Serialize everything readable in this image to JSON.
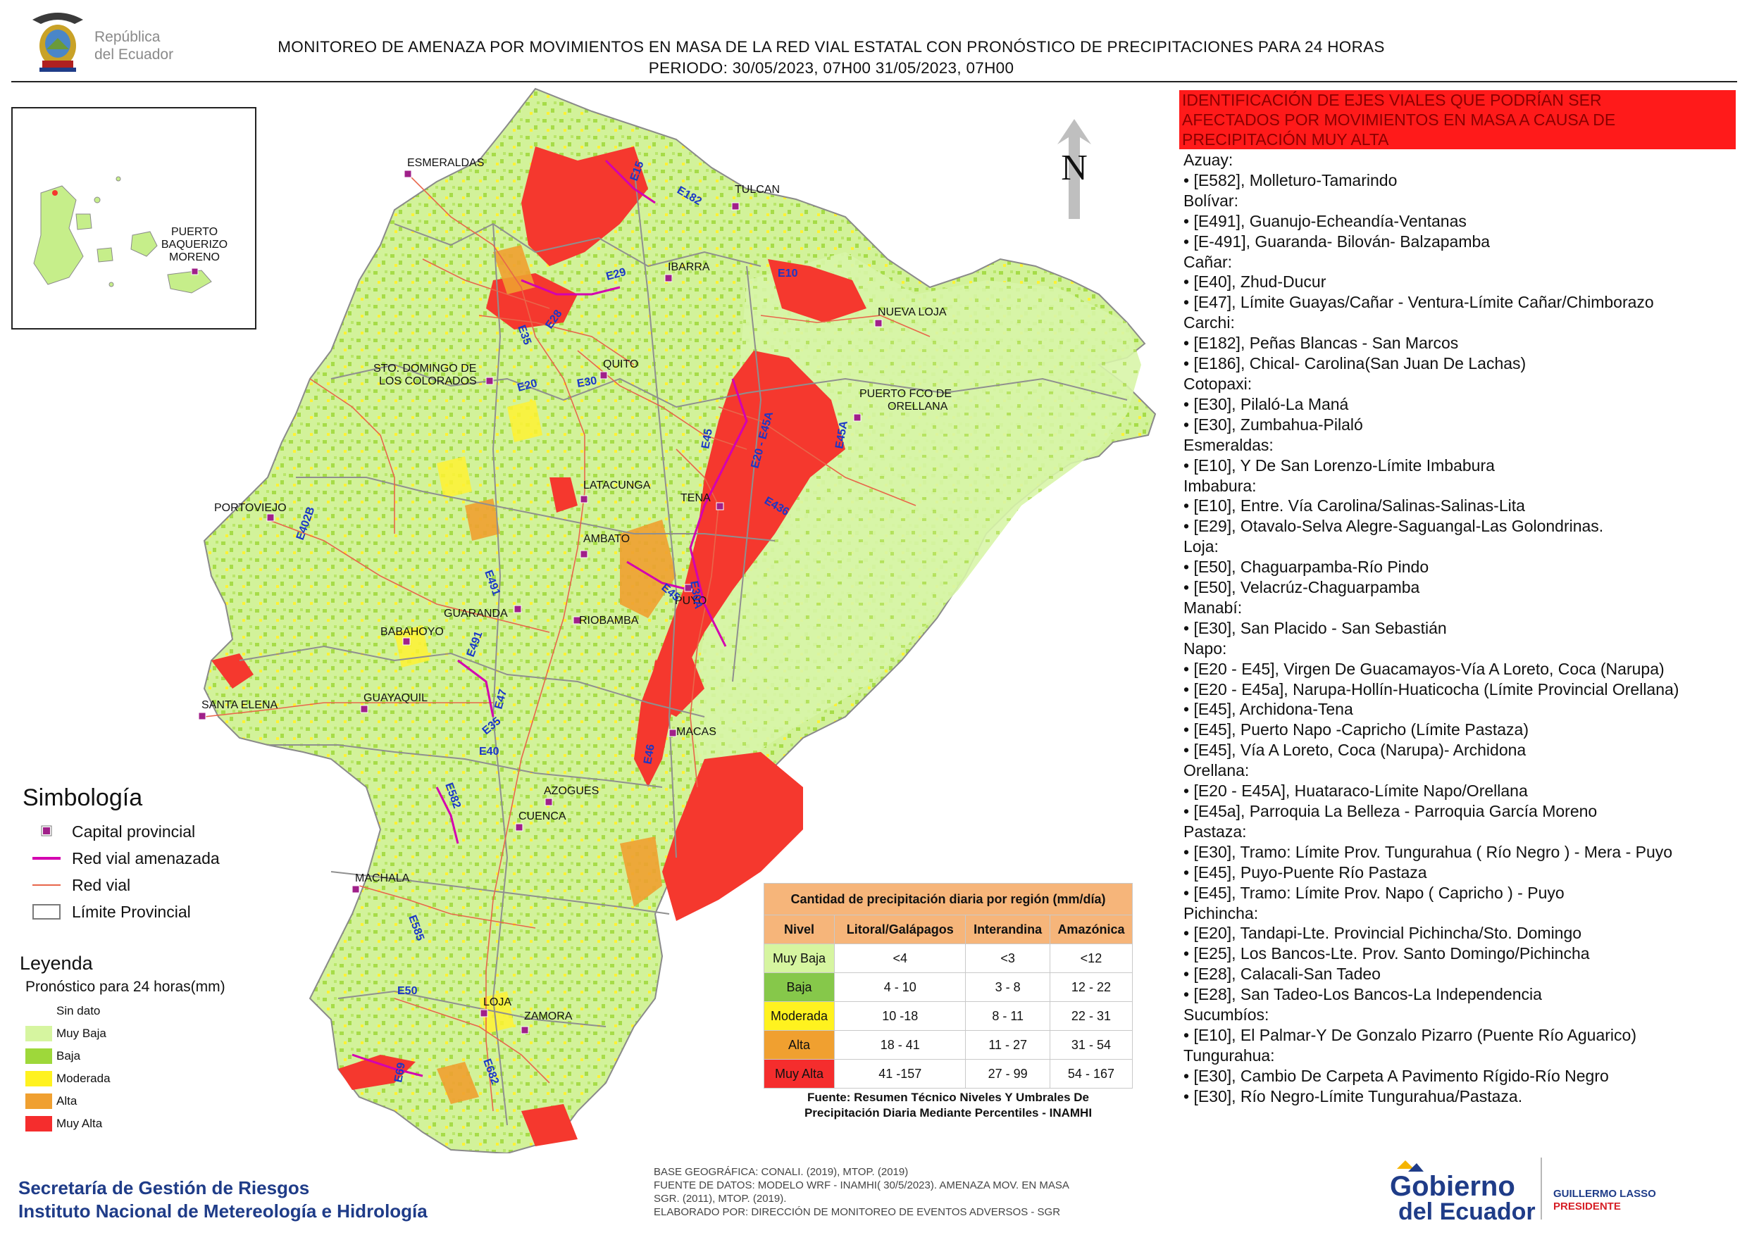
{
  "header": {
    "logo_text_line1": "República",
    "logo_text_line2": "del Ecuador",
    "title_line1": "MONITOREO DE AMENAZA POR MOVIMIENTOS EN MASA DE LA RED VIAL  ESTATAL  CON PRONÓSTICO  DE  PRECIPITACIONES PARA 24 HORAS",
    "title_line2": "PERIODO: 30/05/2023, 07H00 31/05/2023, 07H00"
  },
  "map": {
    "north_label": "N",
    "cities": [
      "ESMERALDAS",
      "TULCAN",
      "IBARRA",
      "NUEVA LOJA",
      "QUITO",
      "STO. DOMINGO DE",
      "LOS COLORADOS",
      "PUERTO FCO DE",
      "ORELLANA",
      "LATACUNGA",
      "TENA",
      "PORTOVIEJO",
      "AMBATO",
      "PUYO",
      "GUARANDA",
      "RIOBAMBA",
      "BABAHOYO",
      "SANTA ELENA",
      "GUAYAQUIL",
      "MACAS",
      "AZOGUES",
      "CUENCA",
      "MACHALA",
      "LOJA",
      "ZAMORA"
    ],
    "roads": [
      "E15",
      "E182",
      "E10",
      "E29",
      "E35",
      "E28",
      "E20",
      "E30",
      "E45",
      "E20 - E45A",
      "E45A",
      "E436",
      "E402B",
      "E30A",
      "E45",
      "E491",
      "E491",
      "E47",
      "E35",
      "E40",
      "E46",
      "E582",
      "E585",
      "E50",
      "E69",
      "E682"
    ],
    "inset_labels": [
      "PUERTO",
      "BAQUERIZO",
      "MORENO"
    ]
  },
  "highlight": {
    "line1": "IDENTIFICACIÓN DE EJES VIALES QUE PODRÍAN SER",
    "line2": "AFECTADOS POR MOVIMIENTOS EN MASA A CAUSA DE",
    "line3": "PRECIPITACIÓN MUY ALTA"
  },
  "road_list": [
    "Azuay:",
    "• [E582], Molleturo-Tamarindo",
    "Bolívar:",
    "• [E491], Guanujo-Echeandía-Ventanas",
    "• [E-491], Guaranda- Bilován- Balzapamba",
    "Cañar:",
    "• [E40], Zhud-Ducur",
    "• [E47], Límite Guayas/Cañar - Ventura-Límite Cañar/Chimborazo",
    "Carchi:",
    "• [E182], Peñas Blancas - San Marcos",
    "• [E186], Chical- Carolina(San Juan De Lachas)",
    "Cotopaxi:",
    "• [E30], Pilaló-La Maná",
    "• [E30], Zumbahua-Pilaló",
    "Esmeraldas:",
    "• [E10], Y De San Lorenzo-Límite Imbabura",
    "Imbabura:",
    "• [E10], Entre. Vía Carolina/Salinas-Salinas-Lita",
    "• [E29], Otavalo-Selva Alegre-Saguangal-Las Golondrinas.",
    "Loja:",
    "• [E50], Chaguarpamba-Río Pindo",
    "• [E50], Velacrúz-Chaguarpamba",
    "Manabí:",
    "• [E30], San Placido - San Sebastián",
    "Napo:",
    "• [E20 - E45], Virgen De Guacamayos-Vía A Loreto, Coca (Narupa)",
    "• [E20 - E45a], Narupa-Hollín-Huaticocha (Límite Provincial Orellana)",
    "• [E45], Archidona-Tena",
    "• [E45], Puerto Napo -Capricho (Límite Pastaza)",
    "• [E45], Vía A Loreto, Coca (Narupa)- Archidona",
    "Orellana:",
    "• [E20 - E45A], Huataraco-Límite Napo/Orellana",
    "• [E45a], Parroquia La Belleza - Parroquia García Moreno",
    "Pastaza:",
    "• [E30], Tramo: Límite Prov. Tungurahua ( Río Negro ) - Mera - Puyo",
    "• [E45], Puyo-Puente Río Pastaza",
    "• [E45], Tramo: Límite Prov. Napo ( Capricho ) - Puyo",
    "Pichincha:",
    "• [E20], Tandapi-Lte. Provincial Pichincha/Sto. Domingo",
    "• [E25], Los Bancos-Lte. Prov. Santo Domingo/Pichincha",
    "• [E28], Calacali-San Tadeo",
    "• [E28], San Tadeo-Los Bancos-La Independencia",
    "Sucumbíos:",
    "• [E10], El Palmar-Y De Gonzalo Pizarro (Puente Río Aguarico)",
    "Tungurahua:",
    "• [E30], Cambio De Carpeta A Pavimento Rígido-Río Negro",
    "• [E30], Río Negro-Límite Tungurahua/Pastaza."
  ],
  "simbologia": {
    "title": "Simbología",
    "items": [
      {
        "label": "Capital provincial",
        "icon": "square-marker-icon",
        "color": "#a0208a"
      },
      {
        "label": "Red vial amenazada",
        "icon": "line-icon",
        "color": "#d400b0"
      },
      {
        "label": "Red vial",
        "icon": "line-icon",
        "color": "#e8664a"
      },
      {
        "label": "Límite Provincial",
        "icon": "box-icon",
        "color": "#7a7a7a"
      }
    ]
  },
  "leyenda": {
    "title": "Leyenda",
    "subtitle": "Pronóstico para 24 horas(mm)",
    "items": [
      {
        "label": "Sin dato",
        "color": "#ffffff"
      },
      {
        "label": "Muy Baja",
        "color": "#d6f5a0"
      },
      {
        "label": "Baja",
        "color": "#9ed83a"
      },
      {
        "label": "Moderada",
        "color": "#fff21f"
      },
      {
        "label": "Alta",
        "color": "#f0a030"
      },
      {
        "label": "Muy Alta",
        "color": "#f52d2d"
      }
    ]
  },
  "precip_table": {
    "caption": "Cantidad de precipitación diaria por región (mm/día)",
    "headers": [
      "Nivel",
      "Litoral/Galápagos",
      "Interandina",
      "Amazónica"
    ],
    "rows": [
      {
        "nivel": "Muy Baja",
        "color": "#d6f5a0",
        "values": [
          "<4",
          "<3",
          "<12"
        ]
      },
      {
        "nivel": "Baja",
        "color": "#86c84a",
        "values": [
          "4 - 10",
          "3 - 8",
          "12 - 22"
        ]
      },
      {
        "nivel": "Moderada",
        "color": "#fff21f",
        "values": [
          "10 -18",
          "8 - 11",
          "22 - 31"
        ]
      },
      {
        "nivel": "Alta",
        "color": "#f0a030",
        "values": [
          "18 - 41",
          "11 - 27",
          "31 - 54"
        ]
      },
      {
        "nivel": "Muy Alta",
        "color": "#f52d2d",
        "values": [
          "41 -157",
          "27 - 99",
          "54 - 167"
        ]
      }
    ],
    "source_line1": "Fuente: Resumen Técnico Niveles Y Umbrales De",
    "source_line2": "Precipitación Diaria Mediante Percentiles - INAMHI"
  },
  "footer": {
    "org_line1": "Secretaría de Gestión de Riesgos",
    "org_line2": "Instituto Nacional de Metereología e Hidrología",
    "meta_line1": "BASE GEOGRÁFICA: CONALI. (2019), MTOP. (2019)",
    "meta_line2": "FUENTE DE DATOS: MODELO WRF - INAMHI( 30/5/2023).  AMENAZA MOV. EN MASA",
    "meta_line3": "SGR. (2011), MTOP. (2019).",
    "meta_line4": "ELABORADO POR: DIRECCIÓN DE MONITOREO DE EVENTOS ADVERSOS - SGR",
    "gob_line1": "Gobierno",
    "gob_line2": "del Ecuador",
    "president_line1": "GUILLERMO LASSO",
    "president_line2": "PRESIDENTE"
  }
}
